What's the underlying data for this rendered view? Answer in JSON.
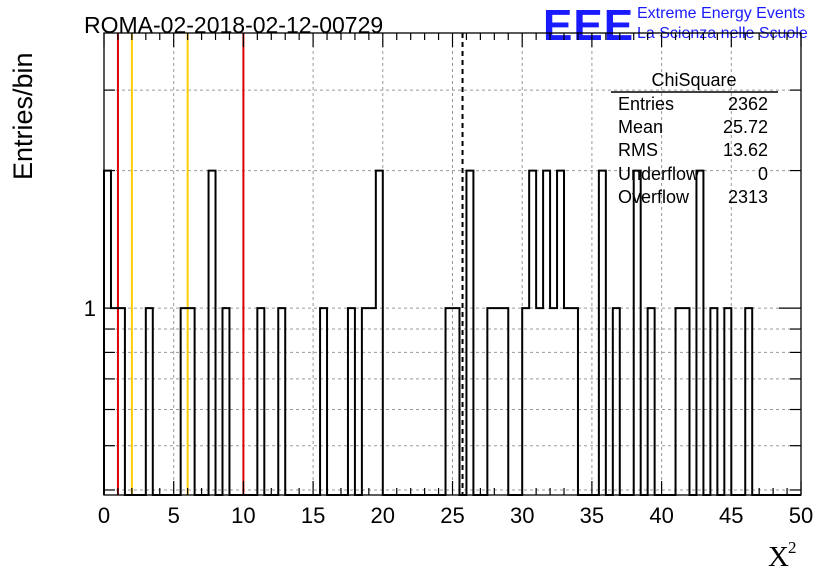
{
  "chart_data": {
    "type": "step-histogram",
    "title": "ROMA-02-2018-02-12-00729",
    "xlabel": "X",
    "xlabel_superscript": "2",
    "ylabel": "Entries/bin",
    "x_range": [
      0,
      50
    ],
    "y_scale": "log",
    "y_range": [
      0.39,
      4.0
    ],
    "bin_width": 0.5,
    "grid": true,
    "x_ticks": [
      0,
      5,
      10,
      15,
      20,
      25,
      30,
      35,
      40,
      45,
      50
    ],
    "x_tick_labels": [
      "0",
      "5",
      "10",
      "15",
      "20",
      "25",
      "30",
      "35",
      "40",
      "45",
      "50"
    ],
    "y_tick_labels": [
      {
        "value": 1,
        "label": "1"
      }
    ],
    "bins": [
      {
        "x": 0.0,
        "y": 2
      },
      {
        "x": 0.5,
        "y": 1
      },
      {
        "x": 1.0,
        "y": 1
      },
      {
        "x": 3.0,
        "y": 1
      },
      {
        "x": 5.5,
        "y": 1
      },
      {
        "x": 6.0,
        "y": 1
      },
      {
        "x": 7.5,
        "y": 2
      },
      {
        "x": 8.5,
        "y": 1
      },
      {
        "x": 11.0,
        "y": 1
      },
      {
        "x": 12.5,
        "y": 1
      },
      {
        "x": 15.5,
        "y": 1
      },
      {
        "x": 17.5,
        "y": 1
      },
      {
        "x": 18.5,
        "y": 1
      },
      {
        "x": 19.0,
        "y": 1
      },
      {
        "x": 19.5,
        "y": 2
      },
      {
        "x": 24.5,
        "y": 1
      },
      {
        "x": 25.0,
        "y": 1
      },
      {
        "x": 26.0,
        "y": 2
      },
      {
        "x": 27.5,
        "y": 1
      },
      {
        "x": 28.0,
        "y": 1
      },
      {
        "x": 28.5,
        "y": 1
      },
      {
        "x": 30.0,
        "y": 1
      },
      {
        "x": 30.5,
        "y": 2
      },
      {
        "x": 31.0,
        "y": 1
      },
      {
        "x": 31.5,
        "y": 2
      },
      {
        "x": 32.0,
        "y": 1
      },
      {
        "x": 32.5,
        "y": 2
      },
      {
        "x": 33.0,
        "y": 1
      },
      {
        "x": 33.5,
        "y": 1
      },
      {
        "x": 35.5,
        "y": 2
      },
      {
        "x": 36.5,
        "y": 1
      },
      {
        "x": 38.0,
        "y": 2
      },
      {
        "x": 39.0,
        "y": 1
      },
      {
        "x": 41.0,
        "y": 1
      },
      {
        "x": 41.5,
        "y": 1
      },
      {
        "x": 42.5,
        "y": 2
      },
      {
        "x": 43.5,
        "y": 1
      },
      {
        "x": 44.5,
        "y": 1
      },
      {
        "x": 46.0,
        "y": 1
      }
    ],
    "vertical_lines": [
      {
        "x": 1.0,
        "color": "#dd0000",
        "style": "solid"
      },
      {
        "x": 2.0,
        "color": "#ffcc00",
        "style": "solid"
      },
      {
        "x": 6.0,
        "color": "#ffcc00",
        "style": "solid"
      },
      {
        "x": 10.0,
        "color": "#dd0000",
        "style": "solid"
      },
      {
        "x": 25.72,
        "color": "#000000",
        "style": "dashed"
      }
    ],
    "stats_box": {
      "title": "ChiSquare",
      "rows": [
        {
          "label": "Entries",
          "value": "2362"
        },
        {
          "label": "Mean",
          "value": "25.72"
        },
        {
          "label": "RMS",
          "value": "13.62"
        },
        {
          "label": "Underflow",
          "value": "0"
        },
        {
          "label": "Overflow",
          "value": "2313"
        }
      ]
    }
  },
  "logo": {
    "letters": "EEE",
    "line1": "Extreme Energy Events",
    "line2": "La Scienza nelle Scuole",
    "color": "#1a1aff"
  }
}
